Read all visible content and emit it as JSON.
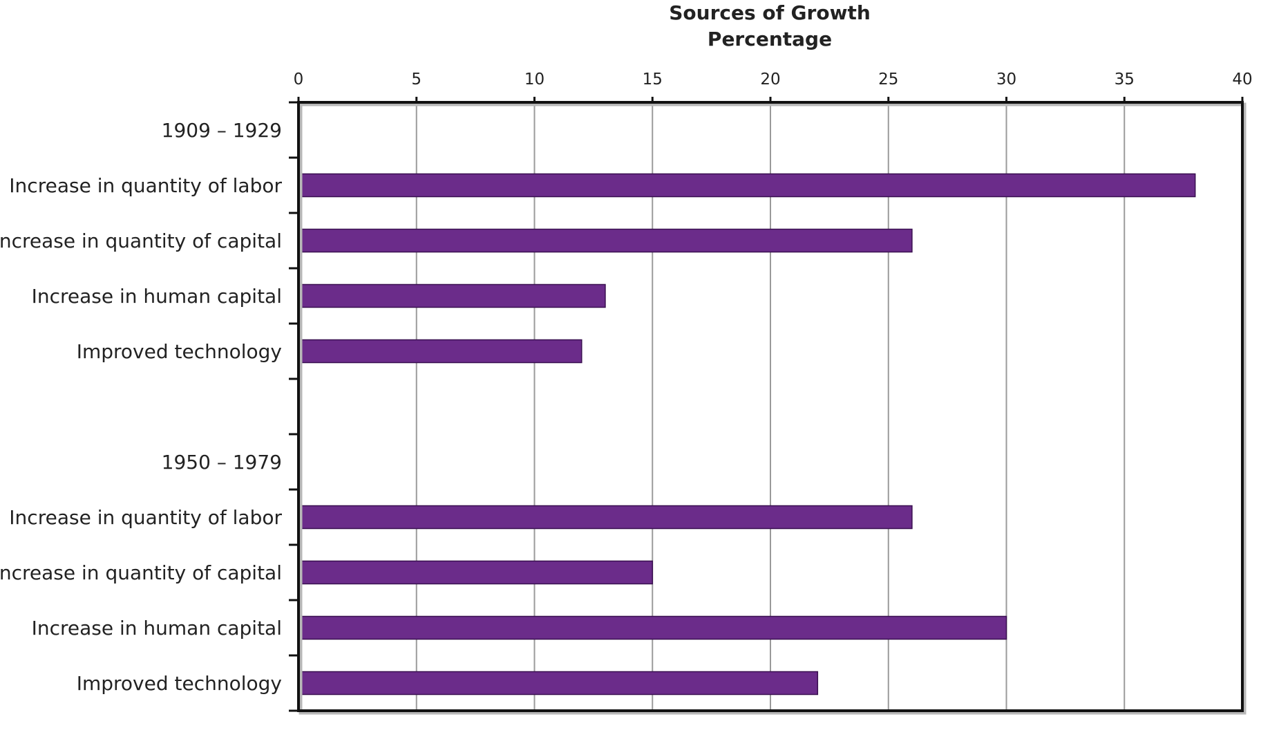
{
  "colors": {
    "bar_fill": "#6b2c8a",
    "bar_stroke": "#3a1050"
  },
  "chart_data": {
    "type": "bar",
    "orientation": "horizontal",
    "title": "Sources of Growth",
    "xlabel": "Percentage",
    "ylabel": "",
    "xlim": [
      0,
      40
    ],
    "xticks": [
      0,
      5,
      10,
      15,
      20,
      25,
      30,
      35,
      40
    ],
    "xaxis_position": "top",
    "grid": true,
    "legend": "none",
    "groups": [
      {
        "label": "1909 – 1929",
        "categories": [
          "Increase in quantity of labor",
          "Increase in quantity of capital",
          "Increase in human capital",
          "Improved technology"
        ],
        "values": [
          38,
          26,
          13,
          12
        ]
      },
      {
        "label": "1950 – 1979",
        "categories": [
          "Increase in quantity of labor",
          "Increase in quantity of capital",
          "Increase in human capital",
          "Improved technology"
        ],
        "values": [
          26,
          15,
          30,
          22
        ]
      }
    ]
  }
}
